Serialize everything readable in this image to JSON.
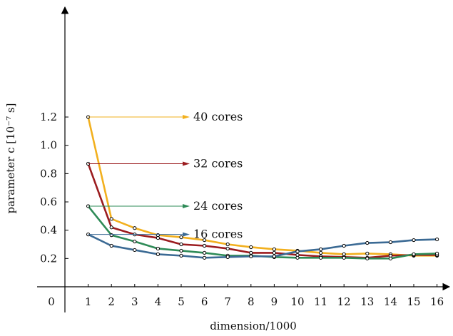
{
  "chart_data": {
    "type": "line",
    "x": [
      1,
      2,
      3,
      4,
      5,
      6,
      7,
      8,
      9,
      10,
      11,
      12,
      13,
      14,
      15,
      16
    ],
    "xlabel": "dimension/1000",
    "ylabel": "parameter c [10⁻⁷ s]",
    "xlim": [
      0,
      16.6
    ],
    "ylim": [
      0,
      1.3
    ],
    "x_ticks": [
      "0",
      "1",
      "2",
      "3",
      "4",
      "5",
      "6",
      "7",
      "8",
      "9",
      "10",
      "11",
      "12",
      "13",
      "14",
      "15",
      "16"
    ],
    "y_ticks": [
      "0.2",
      "0.4",
      "0.6",
      "0.8",
      "1.0",
      "1.2"
    ],
    "grid": false,
    "series": [
      {
        "name": "40 cores",
        "color": "#f2b01e",
        "values": [
          1.2,
          0.48,
          0.415,
          0.365,
          0.35,
          0.33,
          0.3,
          0.28,
          0.265,
          0.255,
          0.24,
          0.23,
          0.235,
          0.23,
          0.22,
          0.22
        ]
      },
      {
        "name": "32 cores",
        "color": "#9b1c1f",
        "values": [
          0.87,
          0.42,
          0.37,
          0.345,
          0.3,
          0.29,
          0.27,
          0.24,
          0.24,
          0.225,
          0.215,
          0.21,
          0.205,
          0.22,
          0.225,
          0.225
        ]
      },
      {
        "name": "24 cores",
        "color": "#2e8b57",
        "values": [
          0.57,
          0.365,
          0.32,
          0.27,
          0.255,
          0.24,
          0.22,
          0.22,
          0.21,
          0.205,
          0.205,
          0.205,
          0.2,
          0.2,
          0.23,
          0.235
        ]
      },
      {
        "name": "16 cores",
        "color": "#3b6a94",
        "values": [
          0.37,
          0.29,
          0.26,
          0.23,
          0.22,
          0.205,
          0.21,
          0.215,
          0.215,
          0.25,
          0.265,
          0.29,
          0.31,
          0.315,
          0.33,
          0.335
        ]
      }
    ],
    "legend": "inline arrows pointing to labels, right of first point"
  }
}
